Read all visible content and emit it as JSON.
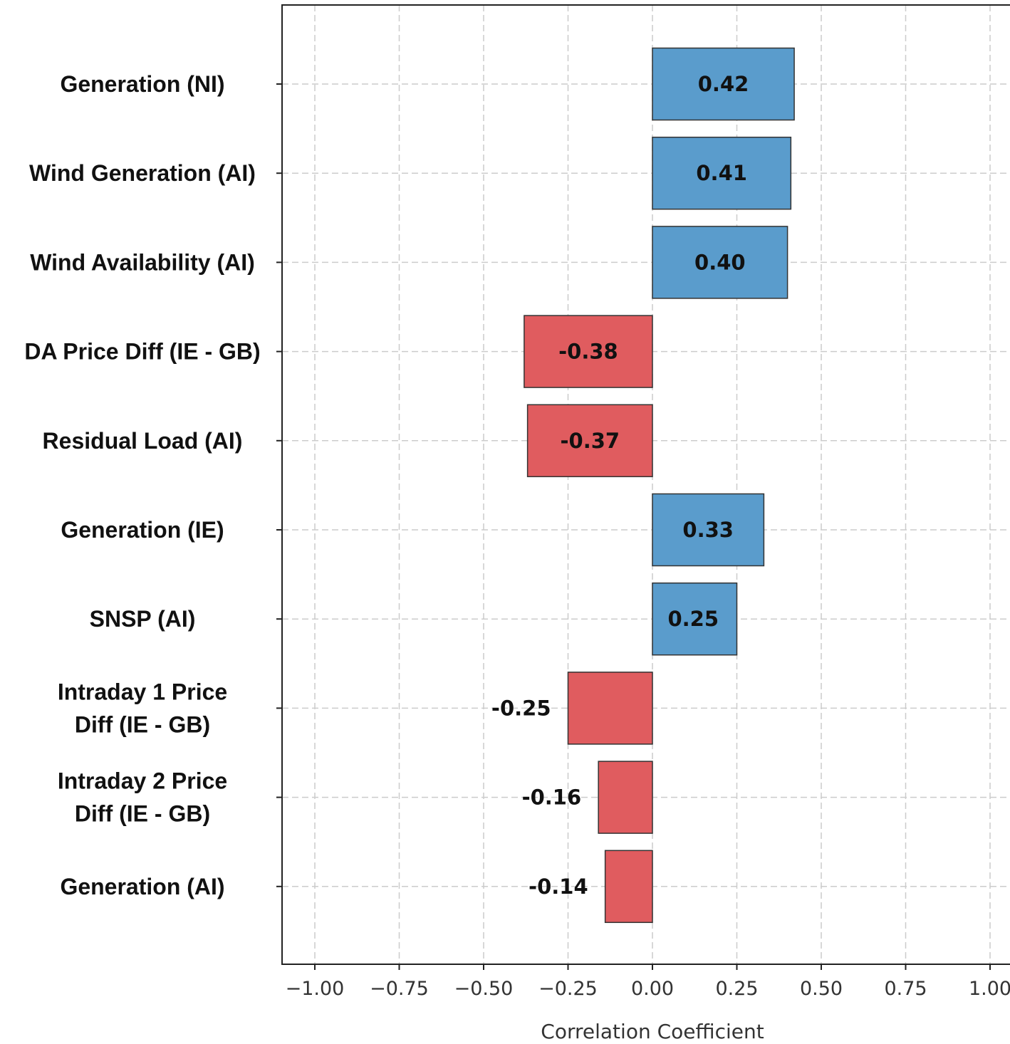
{
  "chart_data": {
    "type": "bar",
    "orientation": "horizontal",
    "categories": [
      [
        "Generation (NI)"
      ],
      [
        "Wind Generation (AI)"
      ],
      [
        "Wind Availability (AI)"
      ],
      [
        "DA Price Diff (IE - GB)"
      ],
      [
        "Residual Load (AI)"
      ],
      [
        "Generation (IE)"
      ],
      [
        "SNSP (AI)"
      ],
      [
        "Intraday 1 Price",
        "Diff (IE - GB)"
      ],
      [
        "Intraday 2 Price",
        "Diff (IE - GB)"
      ],
      [
        "Generation (AI)"
      ]
    ],
    "values": [
      0.42,
      0.41,
      0.4,
      -0.38,
      -0.37,
      0.33,
      0.25,
      -0.25,
      -0.16,
      -0.14
    ],
    "value_labels": [
      "0.42",
      "0.41",
      "0.40",
      "-0.38",
      "-0.37",
      "0.33",
      "0.25",
      "-0.25",
      "-0.16",
      "-0.14"
    ],
    "xlabel": "Correlation Coefficient",
    "ylabel": "",
    "title": "",
    "xlim": [
      -1.1,
      1.06
    ],
    "xticks": [
      -1.0,
      -0.75,
      -0.5,
      -0.25,
      0.0,
      0.25,
      0.5,
      0.75,
      1.0
    ],
    "xtick_labels": [
      "−1.00",
      "−0.75",
      "−0.50",
      "−0.25",
      "0.00",
      "0.25",
      "0.50",
      "0.75",
      "1.00"
    ],
    "grid": true,
    "colors": {
      "positive": "#5a9ccc",
      "negative": "#e05c5f",
      "edge": "#333333",
      "grid": "#cccccc"
    }
  }
}
